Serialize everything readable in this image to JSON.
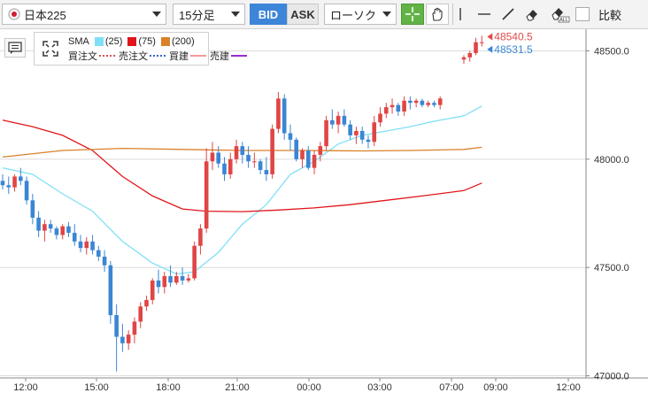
{
  "toolbar": {
    "symbol": "日本225",
    "interval": "15分足",
    "bid_label": "BID",
    "ask_label": "ASK",
    "chart_type": "ローソク",
    "compare_label": "比較",
    "tools": [
      "crosshair-icon",
      "hand-icon",
      "vertical-line-icon",
      "horizontal-line-icon",
      "trendline-icon",
      "eraser-icon",
      "eraser-all-icon"
    ]
  },
  "legend": {
    "sma_label": "SMA",
    "sma_periods": [
      "(25)",
      "(75)",
      "(200)"
    ],
    "sma_colors": [
      "#7fe0f5",
      "#e0161b",
      "#d9822b"
    ],
    "orders": [
      {
        "label": "買注文",
        "color": "#d9534f",
        "style": "dotted"
      },
      {
        "label": "売注文",
        "color": "#3465c8",
        "style": "dotted"
      },
      {
        "label": "買建",
        "color": "#f39a9a",
        "style": "solid"
      },
      {
        "label": "売建",
        "color": "#9b2bd4",
        "style": "solid"
      }
    ]
  },
  "chart_data": {
    "type": "candlestick",
    "x_ticks": [
      "12:00",
      "15:00",
      "18:00",
      "21:00",
      "00:00",
      "03:00",
      "07:00",
      "09:00",
      "12:00"
    ],
    "y_ticks": [
      "48500.0",
      "48000.0",
      "47500.0",
      "47000.0"
    ],
    "ylim": [
      46990,
      48600
    ],
    "grid_lines": [
      48500,
      48000,
      47500,
      47000
    ],
    "price_labels": [
      {
        "text": "48540.5",
        "value": 48540.5,
        "color": "#e24b4b"
      },
      {
        "text": "48531.5",
        "value": 48531.5,
        "color": "#3a86d4"
      }
    ],
    "colors": {
      "up": "#e04545",
      "down": "#3a86d4"
    },
    "candles": [
      [
        47900,
        47930,
        47860,
        47880
      ],
      [
        47880,
        47920,
        47840,
        47870
      ],
      [
        47870,
        47930,
        47850,
        47920
      ],
      [
        47920,
        47960,
        47880,
        47900
      ],
      [
        47900,
        47920,
        47790,
        47810
      ],
      [
        47810,
        47840,
        47700,
        47730
      ],
      [
        47730,
        47760,
        47640,
        47670
      ],
      [
        47670,
        47720,
        47620,
        47700
      ],
      [
        47700,
        47720,
        47660,
        47680
      ],
      [
        47680,
        47690,
        47630,
        47650
      ],
      [
        47650,
        47700,
        47630,
        47690
      ],
      [
        47690,
        47710,
        47640,
        47660
      ],
      [
        47660,
        47700,
        47600,
        47620
      ],
      [
        47620,
        47650,
        47570,
        47590
      ],
      [
        47590,
        47640,
        47560,
        47620
      ],
      [
        47620,
        47650,
        47560,
        47580
      ],
      [
        47580,
        47600,
        47530,
        47550
      ],
      [
        47550,
        47580,
        47480,
        47510
      ],
      [
        47510,
        47530,
        47240,
        47280
      ],
      [
        47280,
        47330,
        47020,
        47180
      ],
      [
        47180,
        47240,
        47110,
        47150
      ],
      [
        47150,
        47210,
        47120,
        47190
      ],
      [
        47190,
        47270,
        47150,
        47250
      ],
      [
        47250,
        47340,
        47220,
        47320
      ],
      [
        47320,
        47370,
        47300,
        47350
      ],
      [
        47350,
        47450,
        47330,
        47440
      ],
      [
        47440,
        47490,
        47380,
        47410
      ],
      [
        47410,
        47480,
        47380,
        47460
      ],
      [
        47460,
        47510,
        47410,
        47430
      ],
      [
        47430,
        47480,
        47420,
        47460
      ],
      [
        47460,
        47500,
        47420,
        47440
      ],
      [
        47440,
        47470,
        47430,
        47450
      ],
      [
        47450,
        47620,
        47440,
        47600
      ],
      [
        47600,
        47700,
        47560,
        47680
      ],
      [
        47680,
        48050,
        47660,
        47990
      ],
      [
        47990,
        48080,
        47950,
        48030
      ],
      [
        48030,
        48060,
        47960,
        47980
      ],
      [
        47980,
        48010,
        47900,
        47930
      ],
      [
        47930,
        48030,
        47910,
        48000
      ],
      [
        48000,
        48090,
        47980,
        48060
      ],
      [
        48060,
        48080,
        47980,
        48020
      ],
      [
        48020,
        48060,
        47960,
        47990
      ],
      [
        47990,
        48030,
        47960,
        47990
      ],
      [
        47990,
        48000,
        47930,
        47950
      ],
      [
        47950,
        48010,
        47900,
        47930
      ],
      [
        47930,
        48160,
        47910,
        48140
      ],
      [
        48140,
        48310,
        48120,
        48280
      ],
      [
        48280,
        48300,
        48090,
        48120
      ],
      [
        48120,
        48160,
        48040,
        48090
      ],
      [
        48090,
        48100,
        47990,
        48000
      ],
      [
        48000,
        48050,
        47960,
        48040
      ],
      [
        48040,
        48060,
        47950,
        47960
      ],
      [
        47960,
        48040,
        47930,
        48020
      ],
      [
        48020,
        48080,
        47990,
        48060
      ],
      [
        48060,
        48200,
        48040,
        48180
      ],
      [
        48180,
        48230,
        48140,
        48160
      ],
      [
        48160,
        48220,
        48120,
        48200
      ],
      [
        48200,
        48230,
        48150,
        48160
      ],
      [
        48160,
        48180,
        48090,
        48110
      ],
      [
        48110,
        48150,
        48070,
        48130
      ],
      [
        48130,
        48150,
        48070,
        48090
      ],
      [
        48090,
        48110,
        48050,
        48080
      ],
      [
        48080,
        48200,
        48060,
        48170
      ],
      [
        48170,
        48240,
        48150,
        48210
      ],
      [
        48210,
        48260,
        48190,
        48240
      ],
      [
        48240,
        48280,
        48210,
        48250
      ],
      [
        48250,
        48260,
        48200,
        48220
      ],
      [
        48220,
        48290,
        48200,
        48270
      ],
      [
        48270,
        48290,
        48230,
        48260
      ],
      [
        48260,
        48280,
        48240,
        48270
      ],
      [
        48270,
        48280,
        48240,
        48250
      ],
      [
        48250,
        48270,
        48240,
        48260
      ],
      [
        48260,
        48270,
        48240,
        48250
      ],
      [
        48250,
        48290,
        48230,
        48280
      ],
      [
        48460,
        48480,
        48440,
        48470
      ],
      [
        48470,
        48500,
        48450,
        48490
      ],
      [
        48490,
        48560,
        48480,
        48540
      ],
      [
        48540,
        48570,
        48520,
        48540
      ]
    ],
    "candle_x_gap_after_index": 73,
    "sma": [
      {
        "period": 25,
        "color": "#7fe0f5",
        "points": [
          [
            0,
            47960
          ],
          [
            5,
            47930
          ],
          [
            10,
            47840
          ],
          [
            15,
            47760
          ],
          [
            20,
            47620
          ],
          [
            25,
            47520
          ],
          [
            29,
            47470
          ],
          [
            32,
            47480
          ],
          [
            36,
            47570
          ],
          [
            40,
            47700
          ],
          [
            44,
            47790
          ],
          [
            48,
            47930
          ],
          [
            52,
            47990
          ],
          [
            56,
            48070
          ],
          [
            60,
            48110
          ],
          [
            64,
            48130
          ],
          [
            68,
            48150
          ],
          [
            72,
            48175
          ],
          [
            74,
            48200
          ],
          [
            77,
            48245
          ]
        ]
      },
      {
        "period": 75,
        "color": "#e0161b",
        "points": [
          [
            0,
            48180
          ],
          [
            5,
            48150
          ],
          [
            10,
            48110
          ],
          [
            15,
            48040
          ],
          [
            20,
            47920
          ],
          [
            25,
            47830
          ],
          [
            30,
            47770
          ],
          [
            34,
            47760
          ],
          [
            40,
            47758
          ],
          [
            46,
            47765
          ],
          [
            52,
            47775
          ],
          [
            58,
            47790
          ],
          [
            64,
            47810
          ],
          [
            70,
            47830
          ],
          [
            74,
            47855
          ],
          [
            77,
            47890
          ]
        ]
      },
      {
        "period": 200,
        "color": "#d9822b",
        "points": [
          [
            0,
            48010
          ],
          [
            10,
            48040
          ],
          [
            20,
            48050
          ],
          [
            30,
            48045
          ],
          [
            40,
            48040
          ],
          [
            50,
            48040
          ],
          [
            60,
            48038
          ],
          [
            68,
            48040
          ],
          [
            74,
            48045
          ],
          [
            77,
            48055
          ]
        ]
      }
    ]
  }
}
